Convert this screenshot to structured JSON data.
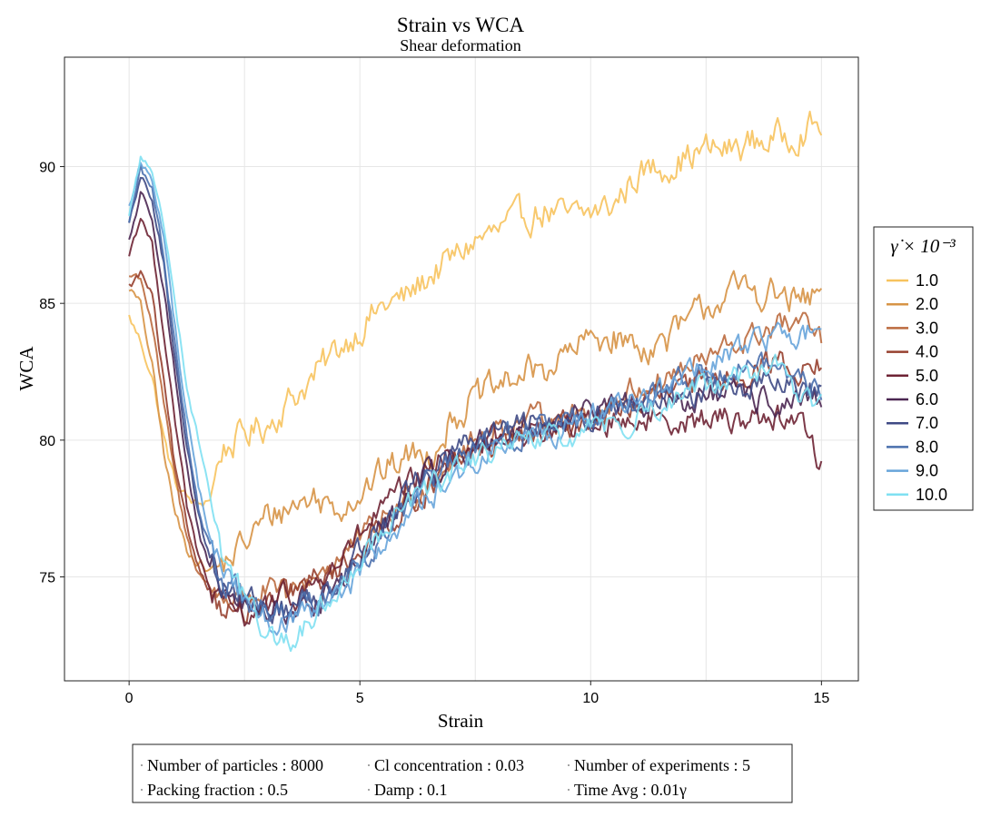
{
  "chart_data": {
    "type": "line",
    "title": "Strain vs WCA",
    "subtitle": "Shear deformation",
    "xlabel": "Strain",
    "ylabel": "WCA",
    "xlim": [
      -1.4,
      15.8
    ],
    "ylim": [
      71.2,
      94.0
    ],
    "xticks": [
      0,
      5,
      10,
      15
    ],
    "yticks": [
      75,
      80,
      85,
      90
    ],
    "grid": true,
    "legend": {
      "title": "γ̇ × 10⁻³",
      "placement": "right"
    },
    "series": [
      {
        "name": "1.0",
        "color": "#F7C35E",
        "x": [
          0,
          0.25,
          0.5,
          0.75,
          1,
          1.25,
          1.5,
          1.75,
          2,
          2.5,
          3,
          3.5,
          4,
          4.5,
          5,
          5.5,
          6,
          6.5,
          7,
          7.5,
          8,
          8.5,
          9,
          9.5,
          10,
          10.5,
          11,
          11.5,
          12,
          12.5,
          13,
          13.5,
          14,
          14.5,
          15
        ],
        "y": [
          84.5,
          83.6,
          82.3,
          80.1,
          78.4,
          77.9,
          77.6,
          77.9,
          79.6,
          80.2,
          80.6,
          81.5,
          82.3,
          83.3,
          84.1,
          84.9,
          85.2,
          86.0,
          86.6,
          87.3,
          87.6,
          88.1,
          88.4,
          88.1,
          88.3,
          88.6,
          89.7,
          90.0,
          90.3,
          90.6,
          90.6,
          90.9,
          91.0,
          91.3,
          91.5
        ],
        "noise": 0.5
      },
      {
        "name": "2.0",
        "color": "#D79446",
        "x": [
          0,
          0.25,
          0.5,
          0.75,
          1,
          1.25,
          1.5,
          1.75,
          2,
          2.5,
          3,
          3.5,
          4,
          4.5,
          5,
          5.5,
          6,
          6.5,
          7,
          7.5,
          8,
          8.5,
          9,
          9.5,
          10,
          10.5,
          11,
          11.5,
          12,
          12.5,
          13,
          13.5,
          14,
          14.5,
          15
        ],
        "y": [
          85.6,
          84.9,
          82.7,
          79.6,
          77.3,
          76.0,
          75.6,
          75.2,
          75.4,
          76.2,
          77.2,
          77.6,
          77.9,
          77.6,
          78.1,
          78.8,
          79.4,
          79.5,
          80.8,
          81.5,
          81.9,
          82.4,
          82.6,
          83.1,
          83.7,
          83.8,
          83.4,
          83.5,
          84.1,
          84.9,
          85.4,
          85.5,
          85.3,
          85.0,
          85.3
        ],
        "noise": 0.5
      },
      {
        "name": "3.0",
        "color": "#BB6A3E",
        "x": [
          0,
          0.25,
          0.5,
          0.75,
          1,
          1.25,
          1.5,
          1.75,
          2,
          2.5,
          3,
          3.5,
          4,
          4.5,
          5,
          5.5,
          6,
          6.5,
          7,
          7.5,
          8,
          8.5,
          9,
          9.5,
          10,
          10.5,
          11,
          11.5,
          12,
          12.5,
          13,
          13.5,
          14,
          14.5,
          15
        ],
        "y": [
          86.0,
          86.0,
          84.2,
          81.3,
          78.6,
          76.4,
          75.2,
          74.6,
          74.3,
          74.3,
          74.5,
          74.2,
          75.1,
          75.6,
          76.3,
          77.0,
          77.8,
          78.5,
          79.4,
          79.9,
          80.5,
          80.6,
          80.8,
          80.8,
          81.0,
          81.4,
          81.9,
          82.2,
          82.6,
          82.9,
          83.4,
          83.7,
          84.2,
          84.2,
          83.7
        ],
        "noise": 0.42
      },
      {
        "name": "4.0",
        "color": "#97402F",
        "x": [
          0,
          0.25,
          0.5,
          0.75,
          1,
          1.25,
          1.5,
          1.75,
          2,
          2.5,
          3,
          3.5,
          4,
          4.5,
          5,
          5.5,
          6,
          6.5,
          7,
          7.5,
          8,
          8.5,
          9,
          9.5,
          10,
          10.5,
          11,
          11.5,
          12,
          12.5,
          13,
          13.5,
          14,
          14.5,
          15
        ],
        "y": [
          85.6,
          86.1,
          85.3,
          82.1,
          78.9,
          76.8,
          75.4,
          74.6,
          73.9,
          73.6,
          73.9,
          74.4,
          74.8,
          75.2,
          76.1,
          76.9,
          77.6,
          78.3,
          78.9,
          79.6,
          79.9,
          80.1,
          80.3,
          80.6,
          80.8,
          81.1,
          81.3,
          81.6,
          81.8,
          82.1,
          82.4,
          82.6,
          82.9,
          82.6,
          82.8
        ],
        "noise": 0.42
      },
      {
        "name": "5.0",
        "color": "#6E2334",
        "x": [
          0,
          0.25,
          0.5,
          0.75,
          1,
          1.25,
          1.5,
          1.75,
          2,
          2.5,
          3,
          3.5,
          4,
          4.5,
          5,
          5.5,
          6,
          6.5,
          7,
          7.5,
          8,
          8.5,
          9,
          9.5,
          10,
          10.5,
          11,
          11.5,
          12,
          12.5,
          13,
          13.5,
          14,
          14.5,
          15
        ],
        "y": [
          86.8,
          88.2,
          87.1,
          84.0,
          80.7,
          77.6,
          75.7,
          74.6,
          73.9,
          73.6,
          73.9,
          74.2,
          74.7,
          75.4,
          76.5,
          77.5,
          78.2,
          78.9,
          79.5,
          79.9,
          80.1,
          80.2,
          80.3,
          80.4,
          80.6,
          80.7,
          80.8,
          80.8,
          80.8,
          80.7,
          80.8,
          80.8,
          80.9,
          80.8,
          79.1
        ],
        "noise": 0.42
      },
      {
        "name": "6.0",
        "color": "#4B2752",
        "x": [
          0,
          0.25,
          0.5,
          0.75,
          1,
          1.25,
          1.5,
          1.75,
          2,
          2.5,
          3,
          3.5,
          4,
          4.5,
          5,
          5.5,
          6,
          6.5,
          7,
          7.5,
          8,
          8.5,
          9,
          9.5,
          10,
          10.5,
          11,
          11.5,
          12,
          12.5,
          13,
          13.5,
          14,
          14.5,
          15
        ],
        "y": [
          87.3,
          89.0,
          88.2,
          85.6,
          82.3,
          79.1,
          76.6,
          75.2,
          74.4,
          73.9,
          73.8,
          73.7,
          74.0,
          74.6,
          75.6,
          76.8,
          77.8,
          78.7,
          79.3,
          79.8,
          80.1,
          80.4,
          80.6,
          80.8,
          81.0,
          81.2,
          81.3,
          81.5,
          81.5,
          81.6,
          81.6,
          81.5,
          81.4,
          81.3,
          81.3
        ],
        "noise": 0.42
      },
      {
        "name": "7.0",
        "color": "#3F4A85",
        "x": [
          0,
          0.25,
          0.5,
          0.75,
          1,
          1.25,
          1.5,
          1.75,
          2,
          2.5,
          3,
          3.5,
          4,
          4.5,
          5,
          5.5,
          6,
          6.5,
          7,
          7.5,
          8,
          8.5,
          9,
          9.5,
          10,
          10.5,
          11,
          11.5,
          12,
          12.5,
          13,
          13.5,
          14,
          14.5,
          15
        ],
        "y": [
          87.8,
          89.6,
          88.8,
          86.4,
          83.0,
          79.9,
          77.2,
          75.7,
          74.8,
          74.2,
          73.8,
          73.8,
          74.3,
          75.0,
          76.0,
          77.1,
          78.0,
          78.8,
          79.5,
          80.0,
          80.3,
          80.5,
          80.7,
          80.8,
          80.9,
          81.1,
          81.3,
          81.5,
          81.6,
          81.8,
          81.9,
          82.0,
          82.0,
          81.8,
          81.6
        ],
        "noise": 0.42
      },
      {
        "name": "8.0",
        "color": "#4A6FAD",
        "x": [
          0,
          0.25,
          0.5,
          0.75,
          1,
          1.25,
          1.5,
          1.75,
          2,
          2.5,
          3,
          3.5,
          4,
          4.5,
          5,
          5.5,
          6,
          6.5,
          7,
          7.5,
          8,
          8.5,
          9,
          9.5,
          10,
          10.5,
          11,
          11.5,
          12,
          12.5,
          13,
          13.5,
          14,
          14.5,
          15
        ],
        "y": [
          88.0,
          89.9,
          89.2,
          86.7,
          83.4,
          80.3,
          77.6,
          76.0,
          74.9,
          74.1,
          73.6,
          73.6,
          74.0,
          74.7,
          75.7,
          76.6,
          77.5,
          78.3,
          79.0,
          79.6,
          80.0,
          80.3,
          80.6,
          80.8,
          80.9,
          81.2,
          81.5,
          81.8,
          82.1,
          82.4,
          82.7,
          82.8,
          82.7,
          82.3,
          81.9
        ],
        "noise": 0.42
      },
      {
        "name": "9.0",
        "color": "#67A4DA",
        "x": [
          0,
          0.25,
          0.5,
          0.75,
          1,
          1.25,
          1.5,
          1.75,
          2,
          2.5,
          3,
          3.5,
          4,
          4.5,
          5,
          5.5,
          6,
          6.5,
          7,
          7.5,
          8,
          8.5,
          9,
          9.5,
          10,
          10.5,
          11,
          11.5,
          12,
          12.5,
          13,
          13.5,
          14,
          14.5,
          15
        ],
        "y": [
          88.5,
          90.1,
          89.6,
          87.4,
          84.1,
          80.9,
          78.3,
          76.5,
          75.3,
          74.3,
          73.5,
          73.3,
          73.6,
          74.2,
          75.1,
          76.2,
          77.1,
          77.9,
          78.6,
          79.2,
          79.7,
          80.0,
          80.3,
          80.5,
          80.8,
          81.1,
          81.5,
          81.9,
          82.3,
          82.7,
          83.1,
          83.5,
          83.8,
          83.9,
          84.0
        ],
        "noise": 0.4
      },
      {
        "name": "10.0",
        "color": "#7FE0F2",
        "x": [
          0,
          0.25,
          0.5,
          0.75,
          1,
          1.25,
          1.5,
          1.75,
          2,
          2.5,
          3,
          3.5,
          4,
          4.5,
          5,
          5.5,
          6,
          6.5,
          7,
          7.5,
          8,
          8.5,
          9,
          9.5,
          10,
          10.5,
          11,
          11.5,
          12,
          12.5,
          13,
          13.5,
          14,
          14.5,
          15
        ],
        "y": [
          88.3,
          90.3,
          89.8,
          87.9,
          85.1,
          82.0,
          80.0,
          78.1,
          76.0,
          74.2,
          72.9,
          72.6,
          73.5,
          74.5,
          75.7,
          76.8,
          77.5,
          78.2,
          78.8,
          79.3,
          79.6,
          79.9,
          80.0,
          80.1,
          80.3,
          80.6,
          80.9,
          81.2,
          81.6,
          81.9,
          82.2,
          82.5,
          82.6,
          81.8,
          81.2
        ],
        "noise": 0.38
      }
    ]
  },
  "info_box": {
    "rows": [
      [
        "Number of particles : 8000",
        "Cl concentration : 0.03",
        "Number of experiments : 5"
      ],
      [
        "Packing fraction : 0.5",
        "Damp : 0.1",
        "Time Avg : 0.01γ"
      ]
    ]
  }
}
